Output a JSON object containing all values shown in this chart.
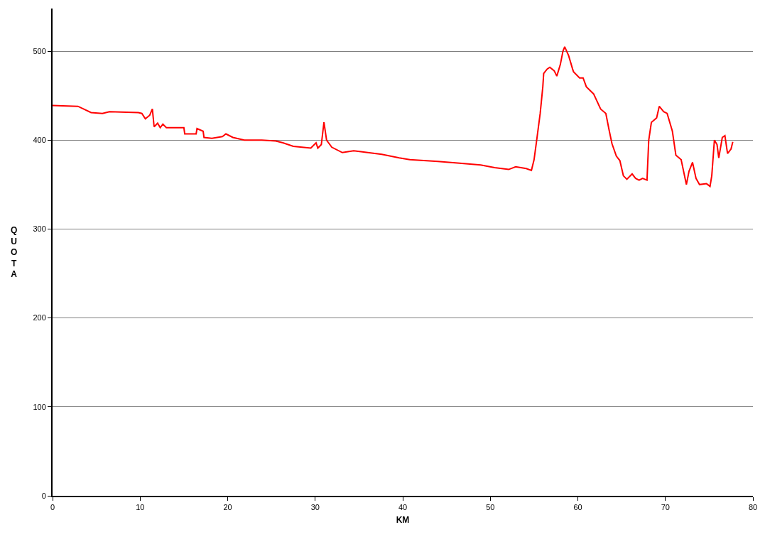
{
  "chart_data": {
    "type": "line",
    "xlabel": "KM",
    "ylabel": "QUOTA",
    "xlim": [
      0,
      80
    ],
    "xticks": [
      0,
      10,
      20,
      30,
      40,
      50,
      60,
      70,
      80
    ],
    "ylim": [
      0,
      548
    ],
    "yticks": [
      0,
      100,
      200,
      300,
      400,
      500
    ],
    "grid": "y",
    "marker": "none",
    "line_style": "solid",
    "series": [
      {
        "color": "#ff0000",
        "x": [
          0,
          2.9,
          4.4,
          5.7,
          6.5,
          9.8,
          10.2,
          10.6,
          11.1,
          11.4,
          11.6,
          12.0,
          12.3,
          12.6,
          13.0,
          13.4,
          15.0,
          15.1,
          16.4,
          16.5,
          17.2,
          17.3,
          18.2,
          19.4,
          19.8,
          20.6,
          21.9,
          23.9,
          25.5,
          26.3,
          27.5,
          29.5,
          30.1,
          30.3,
          30.7,
          31.0,
          31.3,
          31.9,
          33.1,
          34.4,
          36.0,
          37.6,
          39.6,
          40.8,
          44.0,
          46.5,
          48.9,
          50.5,
          52.1,
          52.9,
          54.1,
          54.7,
          55.0,
          55.3,
          55.7,
          56.0,
          56.1,
          56.5,
          56.8,
          57.3,
          57.6,
          58.0,
          58.3,
          58.5,
          58.95,
          59.4,
          59.5,
          60.2,
          60.6,
          60.97,
          61.8,
          62.6,
          63.2,
          63.6,
          63.9,
          64.4,
          64.8,
          65.2,
          65.6,
          66.2,
          66.6,
          67.0,
          67.4,
          67.9,
          68.1,
          68.4,
          69.0,
          69.3,
          69.8,
          70.2,
          70.8,
          71.2,
          71.8,
          72.4,
          72.7,
          73.1,
          73.5,
          73.9,
          74.7,
          75.1,
          75.3,
          75.6,
          75.9,
          76.1,
          76.5,
          76.8,
          77.1,
          77.5,
          77.7
        ],
        "values": [
          439,
          438,
          431,
          430,
          432,
          431,
          430,
          424,
          428,
          435,
          415,
          419,
          414,
          418,
          414,
          414,
          414,
          407,
          407,
          413,
          410,
          403,
          402,
          404,
          407,
          403,
          400,
          400,
          399,
          397,
          393,
          391,
          397,
          391,
          395,
          420,
          400,
          392,
          386,
          388,
          386,
          384,
          380,
          378,
          376,
          374,
          372,
          369,
          367,
          370,
          368,
          366,
          378,
          400,
          430,
          460,
          475,
          480,
          482,
          478,
          472,
          485,
          500,
          505,
          495,
          480,
          477,
          470,
          470,
          460,
          452,
          435,
          430,
          410,
          396,
          382,
          377,
          360,
          356,
          362,
          357,
          355,
          357,
          355,
          400,
          420,
          425,
          438,
          432,
          430,
          410,
          383,
          378,
          350,
          365,
          375,
          357,
          350,
          351,
          348,
          360,
          400,
          395,
          380,
          403,
          405,
          385,
          390,
          398
        ]
      }
    ]
  }
}
